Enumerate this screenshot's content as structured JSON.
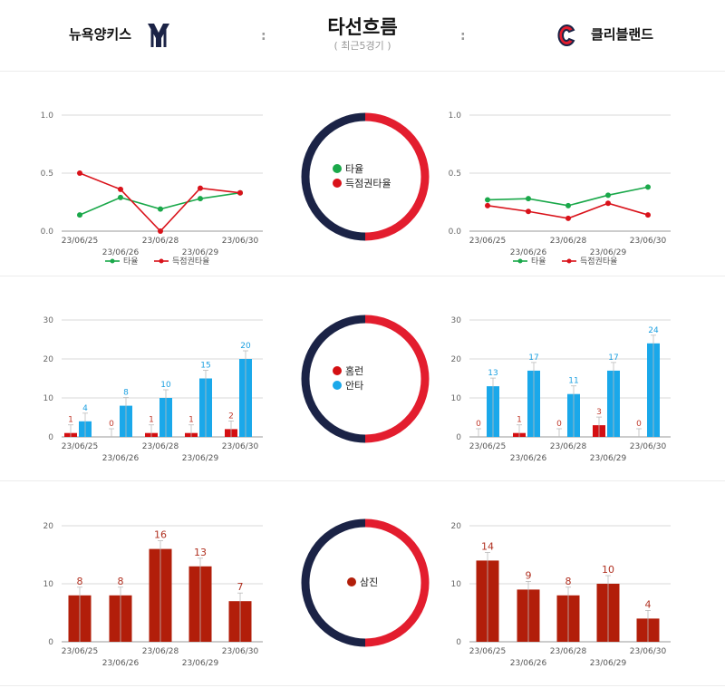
{
  "header": {
    "team_left": "뉴욕양키스",
    "team_right": "클리블랜드",
    "title": "타선흐름",
    "subtitle": "( 최근5경기 )",
    "separator": ":",
    "logo_left_icon": "yankees-logo-icon",
    "logo_right_icon": "guardians-logo-icon"
  },
  "colors": {
    "navy": "#1b2346",
    "red": "#e31d2e",
    "green": "#1aa84a",
    "line_red": "#d9121a",
    "bar_red": "#d40f12",
    "bar_blue": "#1aa8ea",
    "bar_dark_red": "#b21e0a"
  },
  "sections": [
    {
      "legend": [
        {
          "label": "타율",
          "color": "#1aa84a"
        },
        {
          "label": "득점권타율",
          "color": "#d9121a"
        }
      ]
    },
    {
      "legend": [
        {
          "label": "홈런",
          "color": "#d40f12"
        },
        {
          "label": "안타",
          "color": "#1aa8ea"
        }
      ]
    },
    {
      "legend": [
        {
          "label": "삼진",
          "color": "#b21e0a"
        }
      ]
    }
  ],
  "chart_data": [
    {
      "type": "line",
      "team": "뉴욕양키스",
      "categories": [
        "23/06/25",
        "23/06/26",
        "23/06/28",
        "23/06/29",
        "23/06/30"
      ],
      "ylim": [
        0,
        1.0
      ],
      "yticks": [
        "0.0",
        "0.5",
        "1.0"
      ],
      "legend_position": "bottom",
      "series": [
        {
          "name": "타율",
          "color": "#1aa84a",
          "values": [
            0.14,
            0.29,
            0.19,
            0.28,
            0.33
          ]
        },
        {
          "name": "득점권타율",
          "color": "#d9121a",
          "values": [
            0.5,
            0.36,
            0.0,
            0.37,
            0.33
          ]
        }
      ]
    },
    {
      "type": "line",
      "team": "클리블랜드",
      "categories": [
        "23/06/25",
        "23/06/26",
        "23/06/28",
        "23/06/29",
        "23/06/30"
      ],
      "ylim": [
        0,
        1.0
      ],
      "yticks": [
        "0.0",
        "0.5",
        "1.0"
      ],
      "legend_position": "bottom",
      "series": [
        {
          "name": "타율",
          "color": "#1aa84a",
          "values": [
            0.27,
            0.28,
            0.22,
            0.31,
            0.38
          ]
        },
        {
          "name": "득점권타율",
          "color": "#d9121a",
          "values": [
            0.22,
            0.17,
            0.11,
            0.24,
            0.14
          ]
        }
      ]
    },
    {
      "type": "bar",
      "team": "뉴욕양키스",
      "categories": [
        "23/06/25",
        "23/06/26",
        "23/06/28",
        "23/06/29",
        "23/06/30"
      ],
      "ylim": [
        0,
        30
      ],
      "yticks": [
        "0",
        "10",
        "20",
        "30"
      ],
      "series": [
        {
          "name": "홈런",
          "color": "#d40f12",
          "values": [
            1,
            0,
            1,
            1,
            2
          ]
        },
        {
          "name": "안타",
          "color": "#1aa8ea",
          "values": [
            4,
            8,
            10,
            15,
            20
          ]
        }
      ]
    },
    {
      "type": "bar",
      "team": "클리블랜드",
      "categories": [
        "23/06/25",
        "23/06/26",
        "23/06/28",
        "23/06/29",
        "23/06/30"
      ],
      "ylim": [
        0,
        30
      ],
      "yticks": [
        "0",
        "10",
        "20",
        "30"
      ],
      "series": [
        {
          "name": "홈런",
          "color": "#d40f12",
          "values": [
            0,
            1,
            0,
            3,
            0
          ]
        },
        {
          "name": "안타",
          "color": "#1aa8ea",
          "values": [
            13,
            17,
            11,
            17,
            24
          ]
        }
      ]
    },
    {
      "type": "bar",
      "team": "뉴욕양키스",
      "categories": [
        "23/06/25",
        "23/06/26",
        "23/06/28",
        "23/06/29",
        "23/06/30"
      ],
      "ylim": [
        0,
        20
      ],
      "yticks": [
        "0",
        "10",
        "20"
      ],
      "series": [
        {
          "name": "삼진",
          "color": "#b21e0a",
          "values": [
            8,
            8,
            16,
            13,
            7
          ]
        }
      ]
    },
    {
      "type": "bar",
      "team": "클리블랜드",
      "categories": [
        "23/06/25",
        "23/06/26",
        "23/06/28",
        "23/06/29",
        "23/06/30"
      ],
      "ylim": [
        0,
        20
      ],
      "yticks": [
        "0",
        "10",
        "20"
      ],
      "series": [
        {
          "name": "삼진",
          "color": "#b21e0a",
          "values": [
            14,
            9,
            8,
            10,
            4
          ]
        }
      ]
    }
  ]
}
